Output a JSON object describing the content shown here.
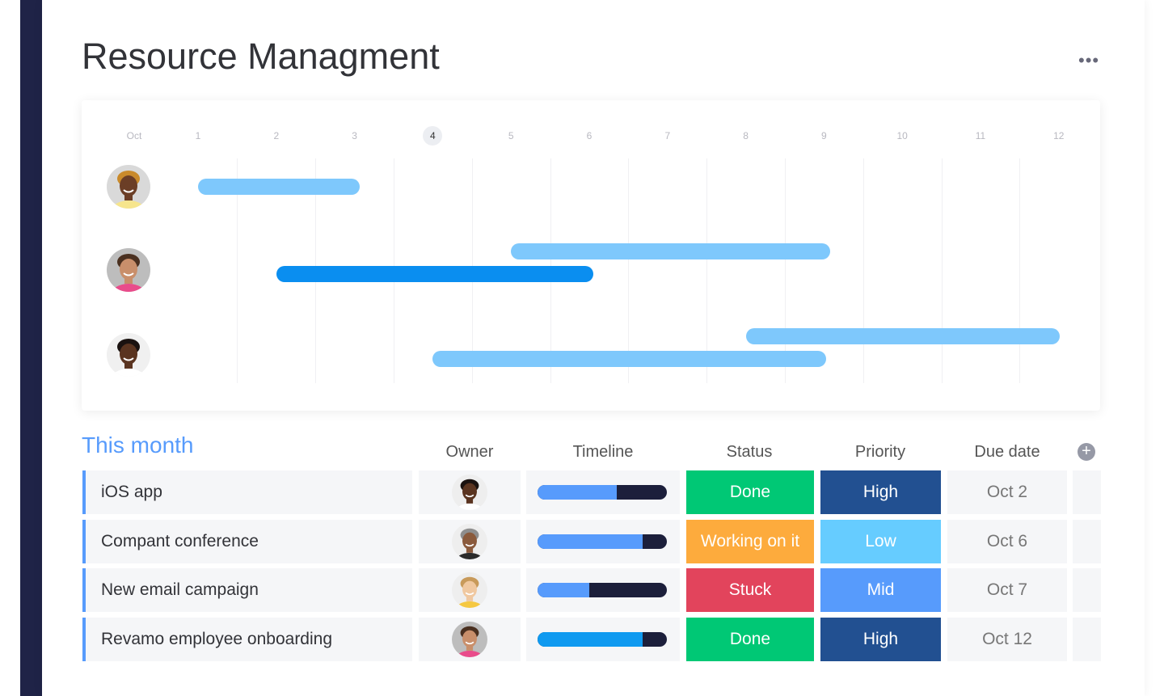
{
  "header": {
    "title": "Resource Managment",
    "more_icon": "ellipsis-icon"
  },
  "gantt": {
    "month": "Oct",
    "days": [
      "1",
      "2",
      "3",
      "4",
      "5",
      "6",
      "7",
      "8",
      "9",
      "10",
      "11",
      "12"
    ],
    "today": "4",
    "rows": [
      {
        "avatar": {
          "skin": "#6b3e26",
          "hair": "#c98a2b",
          "shirt": "#f6e58d",
          "bg": "#d9d9d9"
        },
        "bars": [
          {
            "start": 1,
            "end": 3.07,
            "color": "#7ec8fc"
          }
        ]
      },
      {
        "avatar": {
          "skin": "#c98f6b",
          "hair": "#4a3020",
          "shirt": "#e94c8b",
          "bg": "#bdbdbd"
        },
        "bars": [
          {
            "start": 5,
            "end": 9.08,
            "color": "#7ec8fc"
          },
          {
            "start": 2,
            "end": 6.05,
            "color": "#0a8ef0"
          }
        ]
      },
      {
        "avatar": {
          "skin": "#5a3420",
          "hair": "#1a1210",
          "shirt": "#ffffff",
          "bg": "#f0f0f0"
        },
        "bars": [
          {
            "start": 8,
            "end": 12.01,
            "color": "#7ec8fc"
          },
          {
            "start": 4,
            "end": 9.03,
            "color": "#7ec8fc"
          }
        ]
      }
    ]
  },
  "table": {
    "section_title": "This month",
    "columns": [
      "Owner",
      "Timeline",
      "Status",
      "Priority",
      "Due date"
    ],
    "add_icon": "plus-circle-icon",
    "rows": [
      {
        "name": "iOS app",
        "owner": {
          "skin": "#5a3420",
          "hair": "#1a1210",
          "shirt": "#ffffff",
          "bg": "#eeeeee"
        },
        "progress": 0.61,
        "progress_color": "#579bfc",
        "status": "Done",
        "status_color": "#00c875",
        "priority": "High",
        "priority_color": "#225091",
        "due": "Oct 2"
      },
      {
        "name": "Compant conference",
        "owner": {
          "skin": "#8a5a3c",
          "hair": "#8e8e8e",
          "shirt": "#2b2b2b",
          "bg": "#eeeeee"
        },
        "progress": 0.81,
        "progress_color": "#579bfc",
        "status": "Working on it",
        "status_color": "#fdab3d",
        "priority": "Low",
        "priority_color": "#66ccff",
        "due": "Oct 6"
      },
      {
        "name": "New email campaign",
        "owner": {
          "skin": "#f0c8a0",
          "hair": "#c89a5a",
          "shirt": "#f5c842",
          "bg": "#eeeeee"
        },
        "progress": 0.4,
        "progress_color": "#579bfc",
        "status": "Stuck",
        "status_color": "#e2445c",
        "priority": "Mid",
        "priority_color": "#579bfc",
        "due": "Oct 7"
      },
      {
        "name": "Revamo employee onboarding",
        "owner": {
          "skin": "#c98f6b",
          "hair": "#4a3020",
          "shirt": "#e94c8b",
          "bg": "#bdbdbd"
        },
        "progress": 0.81,
        "progress_color": "#0f9af0",
        "status": "Done",
        "status_color": "#00c875",
        "priority": "High",
        "priority_color": "#225091",
        "due": "Oct 12"
      }
    ]
  }
}
